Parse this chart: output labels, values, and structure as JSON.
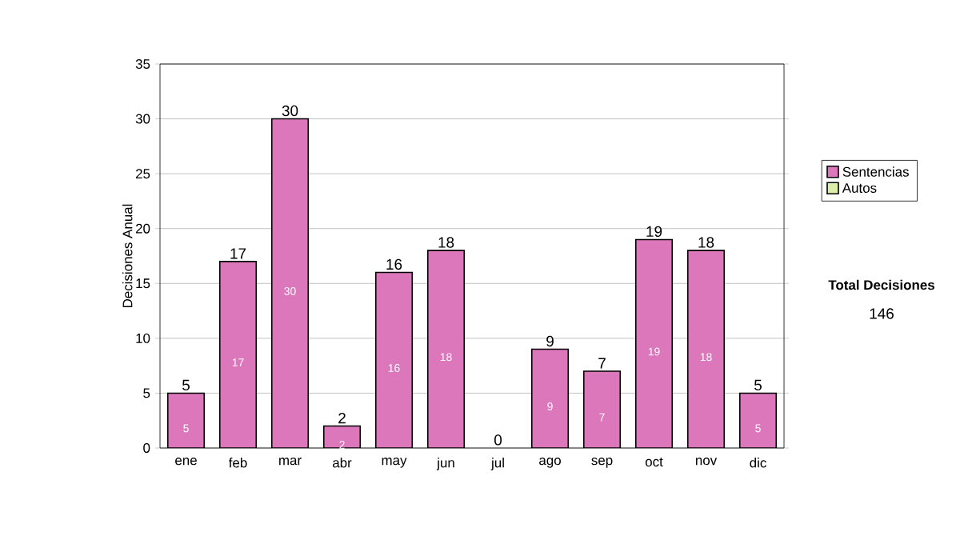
{
  "chart_data": {
    "type": "bar",
    "stacked": true,
    "ylabel": "Decisiones Anual",
    "categories": [
      "ene",
      "feb",
      "mar",
      "abr",
      "may",
      "jun",
      "jul",
      "ago",
      "sep",
      "oct",
      "nov",
      "dic"
    ],
    "series": [
      {
        "name": "Sentencias",
        "color": "#dd77bb",
        "values": [
          5,
          17,
          30,
          2,
          16,
          18,
          0,
          9,
          7,
          19,
          18,
          5
        ],
        "value_labels": [
          "5",
          "17",
          "30",
          "2",
          "16",
          "18",
          null,
          "9",
          "7",
          "19",
          "18",
          "5"
        ]
      },
      {
        "name": "Autos",
        "color": "#ddeeaa",
        "values": [
          0,
          0,
          0,
          0,
          0,
          0,
          0,
          0,
          0,
          0,
          0,
          0
        ]
      }
    ],
    "ylim": [
      0,
      35
    ],
    "yticks": [
      0,
      5,
      10,
      15,
      20,
      25,
      30,
      35
    ],
    "grid": "y",
    "legend": "right",
    "totals": [
      "5",
      "17",
      "30",
      "2",
      "16",
      "18",
      "0",
      "9",
      "7",
      "19",
      "18",
      "5"
    ],
    "annotations": [
      "Total Decisiones",
      "146"
    ]
  }
}
